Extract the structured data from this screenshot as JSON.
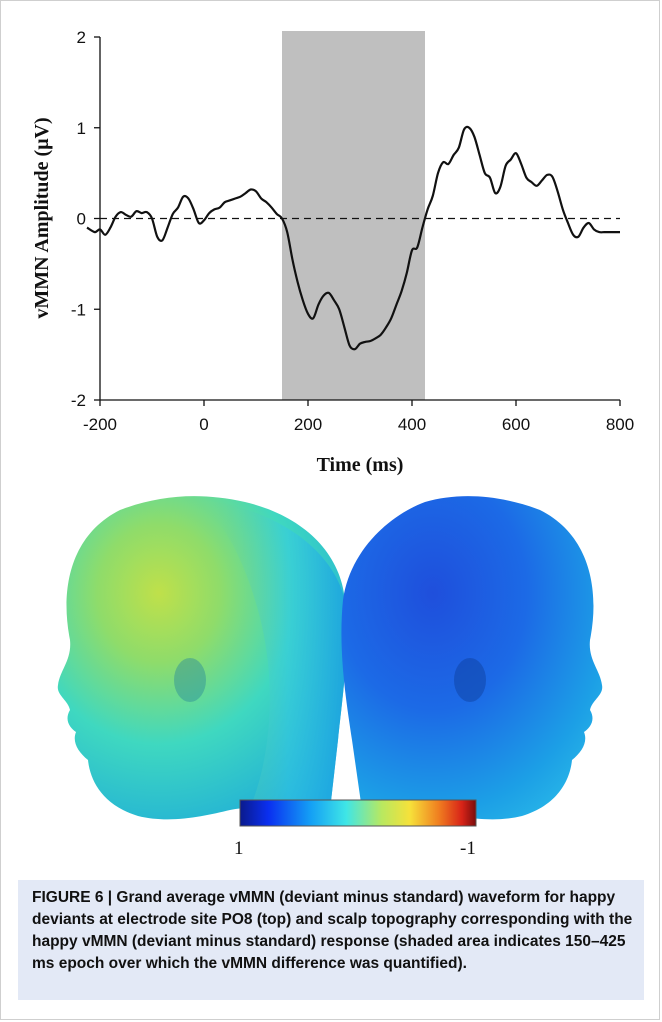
{
  "chart_data": {
    "type": "line",
    "ylabel": "vMMN Amplitude (μV)",
    "xlabel": "Time (ms)",
    "xlim": [
      -200,
      800
    ],
    "ylim": [
      -2,
      2
    ],
    "xticks": [
      "-200",
      "0",
      "200",
      "400",
      "600",
      "800"
    ],
    "yticks": [
      "2",
      "1",
      "0",
      "-1",
      "-2"
    ],
    "shaded_region": [
      150,
      425
    ],
    "baseline": 0,
    "series": [
      {
        "x": [
          -225,
          -210,
          -200,
          -190,
          -180,
          -170,
          -160,
          -150,
          -140,
          -130,
          -120,
          -110,
          -100,
          -90,
          -80,
          -70,
          -60,
          -50,
          -40,
          -30,
          -20,
          -10,
          0,
          10,
          20,
          30,
          40,
          50,
          60,
          70,
          80,
          90,
          100,
          110,
          120,
          130,
          140,
          150,
          160,
          170,
          180,
          190,
          200,
          210,
          220,
          230,
          240,
          250,
          260,
          270,
          280,
          290,
          300,
          310,
          320,
          330,
          340,
          350,
          360,
          370,
          380,
          390,
          400,
          410,
          420,
          430,
          440,
          450,
          460,
          470,
          480,
          490,
          500,
          510,
          520,
          530,
          540,
          550,
          560,
          570,
          580,
          590,
          600,
          610,
          620,
          630,
          640,
          650,
          660,
          670,
          680,
          690,
          700,
          710,
          720,
          730,
          740,
          750,
          760,
          770,
          780,
          790,
          800
        ],
        "y": [
          -0.1,
          -0.15,
          -0.12,
          -0.18,
          -0.1,
          0.02,
          0.07,
          0.04,
          0.02,
          0.08,
          0.06,
          0.07,
          0.0,
          -0.2,
          -0.24,
          -0.1,
          0.05,
          0.12,
          0.24,
          0.22,
          0.1,
          -0.05,
          -0.02,
          0.06,
          0.1,
          0.12,
          0.18,
          0.2,
          0.22,
          0.24,
          0.28,
          0.32,
          0.3,
          0.22,
          0.18,
          0.12,
          0.05,
          0.0,
          -0.15,
          -0.45,
          -0.7,
          -0.9,
          -1.05,
          -1.1,
          -0.95,
          -0.85,
          -0.82,
          -0.9,
          -1.0,
          -1.2,
          -1.4,
          -1.44,
          -1.38,
          -1.36,
          -1.35,
          -1.32,
          -1.28,
          -1.2,
          -1.1,
          -0.95,
          -0.8,
          -0.6,
          -0.35,
          -0.32,
          -0.1,
          0.1,
          0.25,
          0.5,
          0.62,
          0.6,
          0.7,
          0.78,
          0.98,
          1.0,
          0.9,
          0.7,
          0.5,
          0.45,
          0.28,
          0.35,
          0.58,
          0.65,
          0.72,
          0.6,
          0.45,
          0.4,
          0.36,
          0.42,
          0.48,
          0.46,
          0.3,
          0.1,
          -0.05,
          -0.18,
          -0.2,
          -0.1,
          -0.05,
          -0.12,
          -0.15,
          -0.15,
          -0.15,
          -0.15,
          -0.15
        ]
      }
    ]
  },
  "colorbar": {
    "left_label": "1",
    "right_label": "-1"
  },
  "caption": "FIGURE 6 | Grand average vMMN (deviant minus standard) waveform for happy deviants at electrode site PO8 (top) and scalp topography corresponding with the happy vMMN (deviant minus standard) response (shaded area indicates 150–425 ms epoch over which the vMMN difference was quantified)."
}
